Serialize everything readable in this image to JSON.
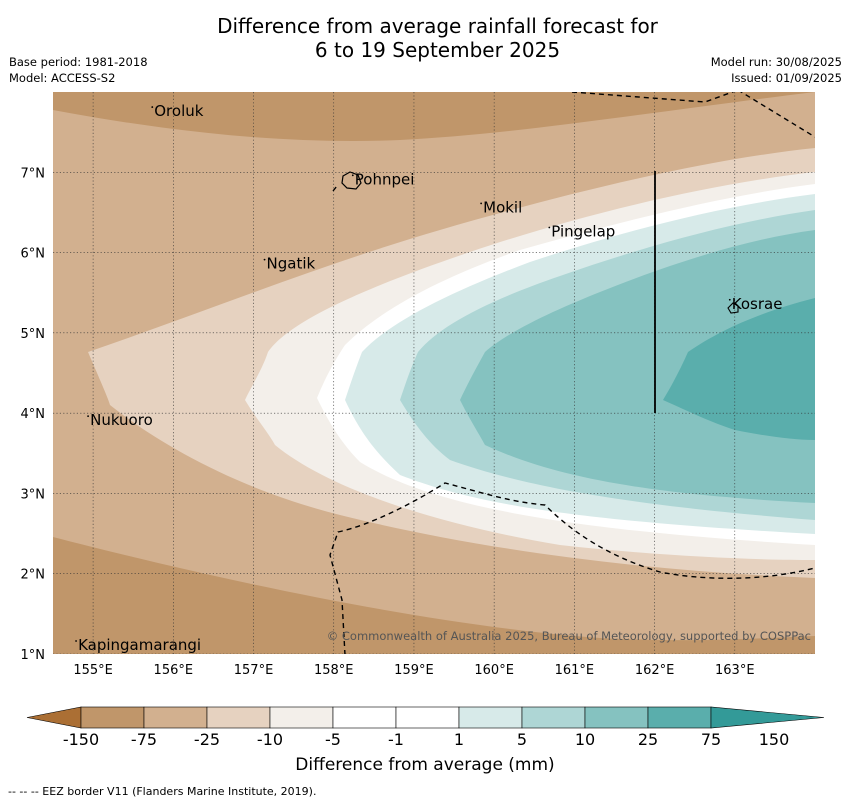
{
  "title": {
    "line1": "Difference from average rainfall forecast for",
    "line2": "6 to 19 September 2025"
  },
  "meta": {
    "base_period": "Base period: 1981-2018",
    "model": "Model: ACCESS-S2",
    "model_run": "Model run: 30/08/2025",
    "issued": "Issued: 01/09/2025"
  },
  "map": {
    "lon_ticks": [
      "155°E",
      "156°E",
      "157°E",
      "158°E",
      "159°E",
      "160°E",
      "161°E",
      "162°E",
      "163°E"
    ],
    "lat_ticks": [
      "7°N",
      "6°N",
      "5°N",
      "4°N",
      "3°N",
      "2°N",
      "1°N"
    ],
    "places": [
      {
        "name": "Oroluk",
        "lon": 155.75,
        "lat": 7.7
      },
      {
        "name": "Pohnpei",
        "lon": 158.25,
        "lat": 6.85
      },
      {
        "name": "Mokil",
        "lon": 159.85,
        "lat": 6.5
      },
      {
        "name": "Pingelap",
        "lon": 160.7,
        "lat": 6.2
      },
      {
        "name": "Ngatik",
        "lon": 157.15,
        "lat": 5.8
      },
      {
        "name": "Kosrae",
        "lon": 162.95,
        "lat": 5.3
      },
      {
        "name": "Nukuoro",
        "lon": 154.95,
        "lat": 3.85
      },
      {
        "name": "Kapingamarangi",
        "lon": 154.8,
        "lat": 1.05
      }
    ],
    "copyright": "© Commonwealth of Australia 2025, Bureau of Meteorology, supported by COSPPac",
    "colors": {
      "c_lt_m75": "#c0966a",
      "c_m75_m25": "#d2b08f",
      "c_m25_m10": "#e6d2c0",
      "c_m10_m5": "#f3efea",
      "c_m5_m1": "#ffffff",
      "c_1_5": "#d7eae9",
      "c_5_10": "#aed6d5",
      "c_10_25": "#85c2c0",
      "c_25_75": "#5aaeac"
    }
  },
  "colorbar": {
    "labels": [
      "-150",
      "-75",
      "-25",
      "-10",
      "-5",
      "-1",
      "1",
      "5",
      "10",
      "25",
      "75",
      "150"
    ],
    "colors": [
      "#ab6f34",
      "#c0966a",
      "#d2b08f",
      "#e6d2c0",
      "#f3efea",
      "#ffffff",
      "#ffffff",
      "#d7eae9",
      "#aed6d5",
      "#85c2c0",
      "#5aaeac",
      "#339a98"
    ],
    "title": "Difference from average (mm)"
  },
  "footnote": "--  --  -- EEZ border V11 (Flanders Marine Institute, 2019)."
}
